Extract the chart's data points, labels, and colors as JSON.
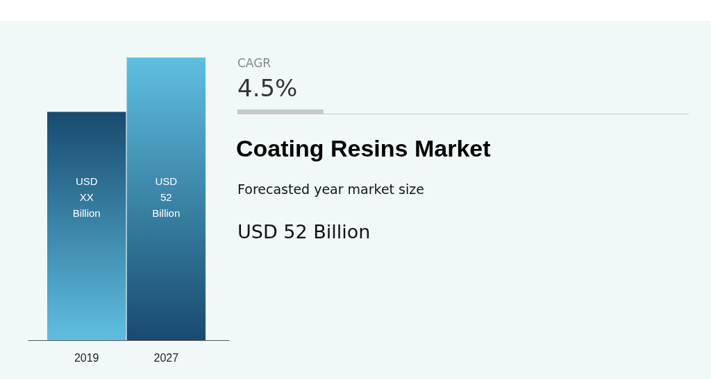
{
  "chart_data": {
    "type": "bar",
    "title": "Coating Resins Market",
    "categories": [
      "2019",
      "2027"
    ],
    "values": [
      42,
      52
    ],
    "colors": [
      "#184a6e",
      "#5fbfe0"
    ],
    "value_labels": [
      "USD XX Billion",
      "USD 52 Billion"
    ],
    "annotations": [
      "CAGR",
      "4.5%",
      "Forecasted year market size",
      "USD 52 Billion"
    ]
  }
}
